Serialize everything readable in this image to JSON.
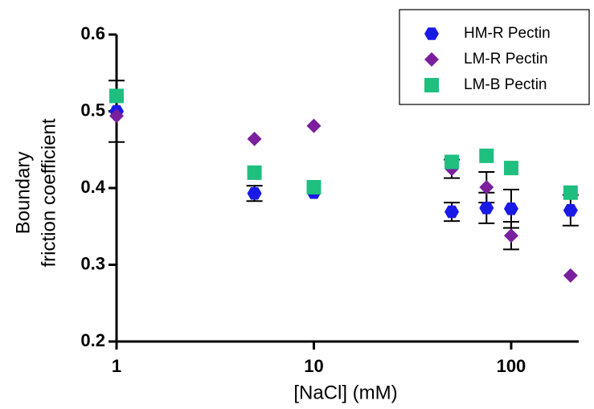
{
  "chart_data": {
    "type": "scatter",
    "xlabel": "[NaCl] (mM)",
    "ylabel": [
      "Boundary",
      "friction coefficient"
    ],
    "xscale": "log",
    "xlim": [
      1,
      220
    ],
    "xticks": [
      1,
      10,
      100
    ],
    "ylim": [
      0.2,
      0.6
    ],
    "yticks": [
      0.2,
      0.3,
      0.4,
      0.5,
      0.6
    ],
    "legend": "upper right",
    "series": [
      {
        "name": "HM-R Pectin",
        "color": "#1a1ae6",
        "marker": "hexagon",
        "x": [
          1,
          5,
          10,
          50,
          75,
          100,
          200
        ],
        "values": [
          0.5,
          0.393,
          0.394,
          0.369,
          0.374,
          0.373,
          0.371
        ],
        "errors": [
          0.04,
          0.01,
          null,
          0.012,
          0.02,
          0.025,
          0.02
        ]
      },
      {
        "name": "LM-R Pectin",
        "color": "#7a1f9e",
        "marker": "diamond",
        "x": [
          1,
          5,
          10,
          50,
          75,
          100,
          200
        ],
        "values": [
          0.494,
          0.464,
          0.481,
          0.425,
          0.401,
          0.338,
          0.286
        ],
        "errors": [
          null,
          null,
          null,
          0.012,
          0.02,
          0.018,
          null
        ]
      },
      {
        "name": "LM-B Pectin",
        "color": "#1fbf80",
        "marker": "square",
        "x": [
          1,
          5,
          10,
          50,
          75,
          100,
          200
        ],
        "values": [
          0.52,
          0.42,
          0.401,
          0.434,
          0.442,
          0.426,
          0.394
        ]
      }
    ]
  }
}
